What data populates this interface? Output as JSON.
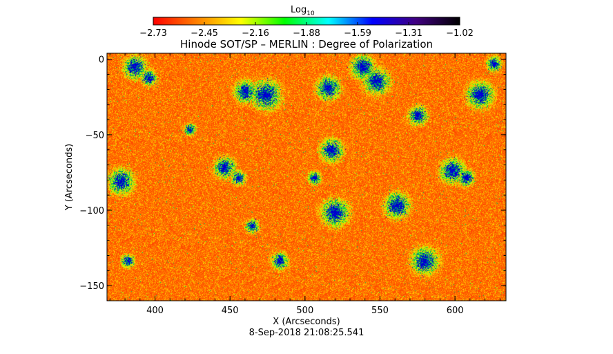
{
  "chart_data": {
    "type": "heatmap",
    "title": "Hinode SOT/SP – MERLIN : Degree of Polarization",
    "colorbar": {
      "label_main": "Log",
      "label_sub": "10",
      "ticks": [
        "−2.73",
        "−2.45",
        "−2.16",
        "−1.88",
        "−1.59",
        "−1.31",
        "−1.02"
      ],
      "range": [
        -2.73,
        -1.02
      ],
      "colors": [
        "#ff0000",
        "#ff8000",
        "#ffff00",
        "#00ff00",
        "#00ffff",
        "#0000ff",
        "#400080",
        "#000000"
      ]
    },
    "xlabel": "X (Arcseconds)",
    "ylabel": "Y (Arcseconds)",
    "xlim": [
      368,
      634
    ],
    "ylim": [
      -160,
      4
    ],
    "xticks": [
      {
        "value": 400,
        "label": "400"
      },
      {
        "value": 450,
        "label": "450"
      },
      {
        "value": 500,
        "label": "500"
      },
      {
        "value": 550,
        "label": "550"
      },
      {
        "value": 600,
        "label": "600"
      }
    ],
    "yticks": [
      {
        "value": 0,
        "label": "0"
      },
      {
        "value": -50,
        "label": "−50"
      },
      {
        "value": -100,
        "label": "−100"
      },
      {
        "value": -150,
        "label": "−150"
      }
    ],
    "timestamp": "8-Sep-2018 21:08:25.541"
  }
}
